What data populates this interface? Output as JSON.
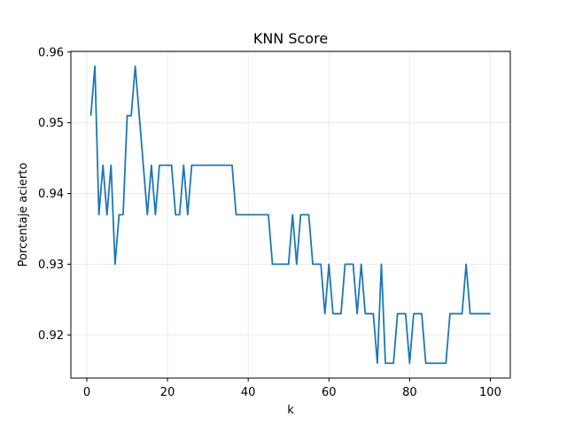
{
  "chart_data": {
    "type": "line",
    "title": "KNN Score",
    "xlabel": "k",
    "ylabel": "Porcentaje acierto",
    "xlim": [
      -3.95,
      104.95
    ],
    "ylim": [
      0.9139,
      0.9601
    ],
    "xticks": [
      0,
      20,
      40,
      60,
      80,
      100
    ],
    "yticks": [
      0.92,
      0.93,
      0.94,
      0.95,
      0.96
    ],
    "xtick_labels": [
      "0",
      "20",
      "40",
      "60",
      "80",
      "100"
    ],
    "ytick_labels": [
      "0.92",
      "0.93",
      "0.94",
      "0.95",
      "0.96"
    ],
    "grid": true,
    "line_color": "#1f77b4",
    "series": [
      {
        "x": [
          1,
          2,
          3,
          4,
          5,
          6,
          7,
          8,
          9,
          10,
          11,
          12,
          13,
          14,
          15,
          16,
          17,
          18,
          19,
          20,
          21,
          22,
          23,
          24,
          25,
          26,
          27,
          28,
          29,
          30,
          31,
          32,
          33,
          34,
          35,
          36,
          37,
          38,
          39,
          40,
          41,
          42,
          43,
          44,
          45,
          46,
          47,
          48,
          49,
          50,
          51,
          52,
          53,
          54,
          55,
          56,
          57,
          58,
          59,
          60,
          61,
          62,
          63,
          64,
          65,
          66,
          67,
          68,
          69,
          70,
          71,
          72,
          73,
          74,
          75,
          76,
          77,
          78,
          79,
          80,
          81,
          82,
          83,
          84,
          85,
          86,
          87,
          88,
          89,
          90,
          91,
          92,
          93,
          94,
          95,
          96,
          97,
          98,
          99,
          100
        ],
        "values": [
          0.951,
          0.958,
          0.937,
          0.944,
          0.937,
          0.944,
          0.93,
          0.937,
          0.937,
          0.951,
          0.951,
          0.958,
          0.951,
          0.944,
          0.937,
          0.944,
          0.937,
          0.944,
          0.944,
          0.944,
          0.944,
          0.937,
          0.937,
          0.944,
          0.937,
          0.944,
          0.944,
          0.944,
          0.944,
          0.944,
          0.944,
          0.944,
          0.944,
          0.944,
          0.944,
          0.944,
          0.937,
          0.937,
          0.937,
          0.937,
          0.937,
          0.937,
          0.937,
          0.937,
          0.937,
          0.93,
          0.93,
          0.93,
          0.93,
          0.93,
          0.937,
          0.93,
          0.937,
          0.937,
          0.937,
          0.93,
          0.93,
          0.93,
          0.923,
          0.93,
          0.923,
          0.923,
          0.923,
          0.93,
          0.93,
          0.93,
          0.923,
          0.93,
          0.923,
          0.923,
          0.923,
          0.916,
          0.93,
          0.916,
          0.916,
          0.916,
          0.923,
          0.923,
          0.923,
          0.916,
          0.923,
          0.923,
          0.923,
          0.916,
          0.916,
          0.916,
          0.916,
          0.916,
          0.916,
          0.923,
          0.923,
          0.923,
          0.923,
          0.93,
          0.923,
          0.923,
          0.923,
          0.923,
          0.923,
          0.923
        ]
      }
    ]
  }
}
